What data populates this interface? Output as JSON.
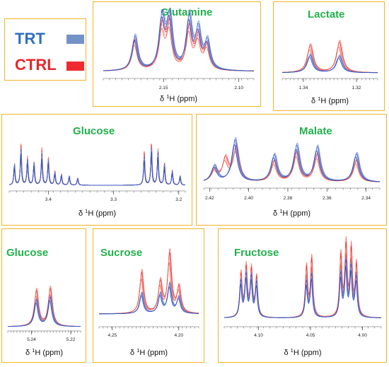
{
  "legend": {
    "items": [
      {
        "label": "TRT",
        "color": "#2e6fc4",
        "swatch": "#7393c8"
      },
      {
        "label": "CTRL",
        "color": "#e8262a",
        "swatch": "#ee2b2f"
      }
    ]
  },
  "axis_label": {
    "delta": "δ",
    "sup": "1",
    "nucleus": "H",
    "unit": "(ppm)"
  },
  "chart_data": [
    {
      "id": "glutamine",
      "type": "line",
      "title": "Glutamine",
      "xlim": [
        2.19,
        2.09
      ],
      "xticks": [
        "2.15",
        "2.10"
      ],
      "xtick_values": [
        2.15,
        2.1
      ],
      "peaks": {
        "trt": [
          [
            2.169,
            0.65
          ],
          [
            2.151,
            0.98
          ],
          [
            2.146,
            1.0
          ],
          [
            2.133,
            0.98
          ],
          [
            2.127,
            0.72
          ],
          [
            2.121,
            0.52
          ]
        ],
        "ctrl": [
          [
            2.169,
            0.58
          ],
          [
            2.151,
            0.82
          ],
          [
            2.146,
            0.85
          ],
          [
            2.133,
            0.8
          ],
          [
            2.127,
            0.6
          ],
          [
            2.121,
            0.45
          ]
        ]
      },
      "width": 0.0022
    },
    {
      "id": "lactate",
      "type": "line",
      "title": "Lactate",
      "xlim": [
        1.348,
        1.312
      ],
      "xticks": [
        "1.34",
        "1.32"
      ],
      "xtick_values": [
        1.34,
        1.32
      ],
      "peaks": {
        "trt": [
          [
            1.3375,
            0.55
          ],
          [
            1.3265,
            0.52
          ]
        ],
        "ctrl": [
          [
            1.3375,
            0.85
          ],
          [
            1.3265,
            0.95
          ]
        ]
      },
      "width": 0.0013
    },
    {
      "id": "glucose_large",
      "type": "line",
      "title": "Glucose",
      "xlim": [
        3.46,
        3.19
      ],
      "xticks": [
        "3.4",
        "3.3",
        "3.2"
      ],
      "xtick_values": [
        3.4,
        3.3,
        3.2
      ],
      "peaks": {
        "trt": [
          [
            3.452,
            0.45
          ],
          [
            3.442,
            0.78
          ],
          [
            3.432,
            0.55
          ],
          [
            3.422,
            0.48
          ],
          [
            3.41,
            0.68
          ],
          [
            3.4,
            0.55
          ],
          [
            3.39,
            0.28
          ],
          [
            3.38,
            0.22
          ],
          [
            3.368,
            0.2
          ],
          [
            3.355,
            0.15
          ],
          [
            3.253,
            0.62
          ],
          [
            3.242,
            0.82
          ],
          [
            3.232,
            0.72
          ],
          [
            3.222,
            0.45
          ],
          [
            3.21,
            0.3
          ],
          [
            3.198,
            0.2
          ]
        ],
        "ctrl": [
          [
            3.452,
            0.45
          ],
          [
            3.442,
            0.88
          ],
          [
            3.432,
            0.6
          ],
          [
            3.422,
            0.5
          ],
          [
            3.41,
            0.78
          ],
          [
            3.4,
            0.6
          ],
          [
            3.39,
            0.3
          ],
          [
            3.38,
            0.24
          ],
          [
            3.368,
            0.2
          ],
          [
            3.355,
            0.15
          ],
          [
            3.253,
            0.72
          ],
          [
            3.242,
            0.9
          ],
          [
            3.232,
            0.75
          ],
          [
            3.222,
            0.48
          ],
          [
            3.21,
            0.32
          ],
          [
            3.198,
            0.2
          ]
        ]
      },
      "width": 0.0011
    },
    {
      "id": "malate",
      "type": "line",
      "title": "Malate",
      "xlim": [
        2.423,
        2.333
      ],
      "xticks": [
        "2.42",
        "2.40",
        "2.38",
        "2.36",
        "2.34"
      ],
      "xtick_values": [
        2.42,
        2.4,
        2.38,
        2.36,
        2.34
      ],
      "peaks": {
        "trt": [
          [
            2.4175,
            0.35
          ],
          [
            2.407,
            0.92
          ],
          [
            2.387,
            0.58
          ],
          [
            2.3755,
            0.78
          ],
          [
            2.365,
            0.75
          ],
          [
            2.345,
            0.62
          ]
        ],
        "ctrl": [
          [
            2.4175,
            0.25
          ],
          [
            2.412,
            0.48
          ],
          [
            2.4065,
            0.75
          ],
          [
            2.387,
            0.45
          ],
          [
            2.3755,
            0.65
          ],
          [
            2.365,
            0.6
          ],
          [
            2.345,
            0.48
          ]
        ]
      },
      "width": 0.0018
    },
    {
      "id": "glucose_small",
      "type": "line",
      "title": "Glucose",
      "xlim": [
        5.252,
        5.215
      ],
      "xticks": [
        "5.24",
        "5.22"
      ],
      "xtick_values": [
        5.24,
        5.22
      ],
      "peaks": {
        "trt": [
          [
            5.2375,
            0.5
          ],
          [
            5.2305,
            0.55
          ]
        ],
        "ctrl": [
          [
            5.2375,
            0.68
          ],
          [
            5.2305,
            0.72
          ]
        ]
      },
      "width": 0.0012
    },
    {
      "id": "sucrose",
      "type": "line",
      "title": "Sucrose",
      "xlim": [
        4.26,
        4.185
      ],
      "xticks": [
        "4.25",
        "4.20"
      ],
      "xtick_values": [
        4.25,
        4.2
      ],
      "peaks": {
        "trt": [
          [
            4.228,
            0.32
          ],
          [
            4.214,
            0.3
          ],
          [
            4.207,
            0.45
          ],
          [
            4.2,
            0.25
          ]
        ],
        "ctrl": [
          [
            4.228,
            0.65
          ],
          [
            4.214,
            0.48
          ],
          [
            4.207,
            0.92
          ],
          [
            4.2,
            0.4
          ]
        ]
      },
      "width": 0.0017
    },
    {
      "id": "fructose",
      "type": "line",
      "title": "Fructose",
      "xlim": [
        4.133,
        3.982
      ],
      "xticks": [
        "4.10",
        "4.05",
        "4.00"
      ],
      "xtick_values": [
        4.1,
        4.05,
        4.0
      ],
      "peaks": {
        "trt": [
          [
            4.117,
            0.5
          ],
          [
            4.112,
            0.58
          ],
          [
            4.107,
            0.55
          ],
          [
            4.102,
            0.48
          ],
          [
            4.054,
            0.5
          ],
          [
            4.049,
            0.6
          ],
          [
            4.021,
            0.6
          ],
          [
            4.016,
            0.75
          ],
          [
            4.011,
            0.68
          ],
          [
            4.006,
            0.55
          ]
        ],
        "ctrl": [
          [
            4.117,
            0.6
          ],
          [
            4.112,
            0.68
          ],
          [
            4.107,
            0.65
          ],
          [
            4.102,
            0.55
          ],
          [
            4.054,
            0.7
          ],
          [
            4.049,
            0.82
          ],
          [
            4.021,
            0.85
          ],
          [
            4.016,
            0.98
          ],
          [
            4.011,
            0.92
          ],
          [
            4.006,
            0.72
          ]
        ]
      },
      "width": 0.0013
    }
  ]
}
